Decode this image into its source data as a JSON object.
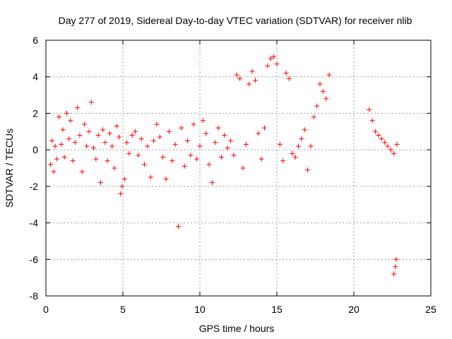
{
  "chart_data": {
    "type": "scatter",
    "title": "Day 277 of 2019, Sidereal Day-to-day VTEC variation (SDTVAR) for receiver nlib",
    "xlabel": "GPS time / hours",
    "ylabel": "SDTVAR / TECUs",
    "xlim": [
      0,
      25
    ],
    "ylim": [
      -8,
      6
    ],
    "x_ticks": [
      0,
      5,
      10,
      15,
      20,
      25
    ],
    "y_ticks": [
      -8,
      -6,
      -4,
      -2,
      0,
      2,
      4,
      6
    ],
    "grid": true,
    "marker": "+",
    "color": "#ff0000",
    "series": [
      {
        "name": "SDTVAR",
        "x": [
          0.3,
          0.4,
          0.5,
          0.6,
          0.7,
          0.85,
          1.0,
          1.1,
          1.2,
          1.35,
          1.5,
          1.6,
          1.75,
          1.9,
          2.05,
          2.2,
          2.35,
          2.5,
          2.65,
          2.8,
          2.95,
          3.1,
          3.25,
          3.4,
          3.55,
          3.7,
          3.85,
          4.0,
          4.15,
          4.3,
          4.45,
          4.6,
          4.75,
          4.85,
          4.95,
          5.1,
          5.25,
          5.4,
          5.6,
          5.8,
          6.0,
          6.2,
          6.4,
          6.6,
          6.8,
          7.0,
          7.2,
          7.4,
          7.6,
          7.8,
          8.0,
          8.2,
          8.4,
          8.6,
          8.8,
          9.0,
          9.2,
          9.4,
          9.6,
          9.8,
          10.0,
          10.2,
          10.4,
          10.6,
          10.8,
          11.0,
          11.2,
          11.4,
          11.6,
          11.8,
          12.0,
          12.2,
          12.4,
          12.6,
          12.8,
          13.0,
          13.2,
          13.4,
          13.6,
          13.8,
          14.0,
          14.2,
          14.4,
          14.6,
          14.8,
          15.0,
          15.2,
          15.4,
          15.6,
          15.8,
          16.0,
          16.2,
          16.4,
          16.6,
          16.8,
          17.0,
          17.2,
          17.4,
          17.6,
          17.8,
          18.0,
          18.2,
          18.4,
          21.0,
          21.2,
          21.4,
          21.6,
          21.8,
          22.0,
          22.2,
          22.4,
          22.6,
          22.8,
          22.6,
          22.7,
          22.75
        ],
        "y": [
          -0.8,
          0.5,
          -1.2,
          0.2,
          -0.5,
          1.8,
          0.3,
          1.1,
          -0.4,
          2.0,
          0.6,
          1.6,
          -0.6,
          0.4,
          2.3,
          0.8,
          -1.2,
          1.4,
          0.2,
          1.0,
          2.6,
          0.1,
          -0.5,
          0.8,
          -1.8,
          1.1,
          0.4,
          -0.6,
          0.9,
          0.2,
          -1.0,
          1.3,
          0.7,
          -2.4,
          -2.0,
          -1.6,
          0.4,
          -0.2,
          0.8,
          1.0,
          -0.3,
          0.6,
          -0.8,
          0.2,
          -1.5,
          0.5,
          1.4,
          0.7,
          -0.4,
          -1.6,
          1.0,
          -0.6,
          0.3,
          -4.2,
          1.2,
          -0.9,
          0.5,
          -0.3,
          1.4,
          -0.5,
          0.2,
          1.6,
          0.9,
          -0.8,
          -1.8,
          0.4,
          1.2,
          -0.4,
          0.8,
          0.1,
          0.5,
          -0.3,
          4.1,
          3.9,
          -1.0,
          0.3,
          3.6,
          4.3,
          3.8,
          0.9,
          -0.5,
          1.2,
          4.6,
          5.0,
          5.1,
          4.7,
          0.3,
          -0.6,
          4.2,
          3.9,
          -0.2,
          -0.4,
          0.2,
          0.6,
          1.1,
          -1.1,
          0.2,
          1.8,
          2.4,
          3.6,
          3.2,
          2.8,
          4.1,
          2.2,
          1.6,
          1.0,
          0.8,
          0.6,
          0.4,
          0.2,
          0.0,
          -0.2,
          0.3,
          -6.8,
          -6.4,
          -6.0
        ]
      }
    ]
  }
}
